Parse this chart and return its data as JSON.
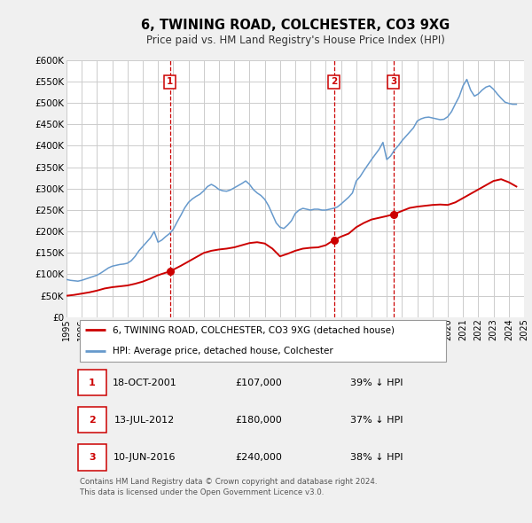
{
  "title": "6, TWINING ROAD, COLCHESTER, CO3 9XG",
  "subtitle": "Price paid vs. HM Land Registry's House Price Index (HPI)",
  "ylim": [
    0,
    600000
  ],
  "yticks": [
    0,
    50000,
    100000,
    150000,
    200000,
    250000,
    300000,
    350000,
    400000,
    450000,
    500000,
    550000,
    600000
  ],
  "ytick_labels": [
    "£0",
    "£50K",
    "£100K",
    "£150K",
    "£200K",
    "£250K",
    "£300K",
    "£350K",
    "£400K",
    "£450K",
    "£500K",
    "£550K",
    "£600K"
  ],
  "hpi_color": "#6699cc",
  "price_color": "#cc0000",
  "grid_color": "#cccccc",
  "bg_color": "#f0f0f0",
  "plot_bg_color": "#ffffff",
  "transaction_dates": [
    2001.79,
    2012.53,
    2016.44
  ],
  "transaction_prices": [
    107000,
    180000,
    240000
  ],
  "transaction_labels": [
    "1",
    "2",
    "3"
  ],
  "vline_color": "#cc0000",
  "legend_label_price": "6, TWINING ROAD, COLCHESTER, CO3 9XG (detached house)",
  "legend_label_hpi": "HPI: Average price, detached house, Colchester",
  "table_rows": [
    {
      "num": "1",
      "date": "18-OCT-2001",
      "price": "£107,000",
      "pct": "39% ↓ HPI"
    },
    {
      "num": "2",
      "date": "13-JUL-2012",
      "price": "£180,000",
      "pct": "37% ↓ HPI"
    },
    {
      "num": "3",
      "date": "10-JUN-2016",
      "price": "£240,000",
      "pct": "38% ↓ HPI"
    }
  ],
  "footer": "Contains HM Land Registry data © Crown copyright and database right 2024.\nThis data is licensed under the Open Government Licence v3.0.",
  "hpi_data": {
    "years": [
      1995.0,
      1995.25,
      1995.5,
      1995.75,
      1996.0,
      1996.25,
      1996.5,
      1996.75,
      1997.0,
      1997.25,
      1997.5,
      1997.75,
      1998.0,
      1998.25,
      1998.5,
      1998.75,
      1999.0,
      1999.25,
      1999.5,
      1999.75,
      2000.0,
      2000.25,
      2000.5,
      2000.75,
      2001.0,
      2001.25,
      2001.5,
      2001.75,
      2002.0,
      2002.25,
      2002.5,
      2002.75,
      2003.0,
      2003.25,
      2003.5,
      2003.75,
      2004.0,
      2004.25,
      2004.5,
      2004.75,
      2005.0,
      2005.25,
      2005.5,
      2005.75,
      2006.0,
      2006.25,
      2006.5,
      2006.75,
      2007.0,
      2007.25,
      2007.5,
      2007.75,
      2008.0,
      2008.25,
      2008.5,
      2008.75,
      2009.0,
      2009.25,
      2009.5,
      2009.75,
      2010.0,
      2010.25,
      2010.5,
      2010.75,
      2011.0,
      2011.25,
      2011.5,
      2011.75,
      2012.0,
      2012.25,
      2012.5,
      2012.75,
      2013.0,
      2013.25,
      2013.5,
      2013.75,
      2014.0,
      2014.25,
      2014.5,
      2014.75,
      2015.0,
      2015.25,
      2015.5,
      2015.75,
      2016.0,
      2016.25,
      2016.5,
      2016.75,
      2017.0,
      2017.25,
      2017.5,
      2017.75,
      2018.0,
      2018.25,
      2018.5,
      2018.75,
      2019.0,
      2019.25,
      2019.5,
      2019.75,
      2020.0,
      2020.25,
      2020.5,
      2020.75,
      2021.0,
      2021.25,
      2021.5,
      2021.75,
      2022.0,
      2022.25,
      2022.5,
      2022.75,
      2023.0,
      2023.25,
      2023.5,
      2023.75,
      2024.0,
      2024.25,
      2024.5
    ],
    "values": [
      88000,
      86000,
      85000,
      84000,
      86000,
      89000,
      92000,
      95000,
      98000,
      103000,
      109000,
      115000,
      119000,
      121000,
      123000,
      124000,
      126000,
      132000,
      142000,
      155000,
      165000,
      175000,
      185000,
      200000,
      175000,
      180000,
      188000,
      195000,
      205000,
      222000,
      238000,
      255000,
      268000,
      276000,
      282000,
      287000,
      295000,
      305000,
      310000,
      305000,
      298000,
      295000,
      294000,
      297000,
      302000,
      307000,
      312000,
      318000,
      310000,
      298000,
      290000,
      284000,
      275000,
      260000,
      240000,
      220000,
      210000,
      207000,
      215000,
      225000,
      242000,
      250000,
      254000,
      252000,
      250000,
      252000,
      252000,
      250000,
      250000,
      252000,
      254000,
      257000,
      264000,
      272000,
      280000,
      290000,
      318000,
      328000,
      342000,
      355000,
      368000,
      380000,
      392000,
      408000,
      368000,
      376000,
      390000,
      400000,
      412000,
      422000,
      432000,
      442000,
      458000,
      463000,
      466000,
      467000,
      465000,
      463000,
      461000,
      462000,
      468000,
      480000,
      498000,
      515000,
      540000,
      555000,
      530000,
      516000,
      521000,
      530000,
      537000,
      540000,
      532000,
      521000,
      511000,
      502000,
      499000,
      497000,
      497000
    ]
  },
  "price_detail": {
    "years": [
      1995.0,
      1995.5,
      1996.0,
      1996.5,
      1997.0,
      1997.5,
      1998.0,
      1998.5,
      1999.0,
      1999.5,
      2000.0,
      2000.5,
      2001.0,
      2001.79,
      2002.5,
      2003.0,
      2003.5,
      2004.0,
      2004.5,
      2005.0,
      2005.5,
      2006.0,
      2006.5,
      2007.0,
      2007.5,
      2008.0,
      2008.5,
      2009.0,
      2009.5,
      2010.0,
      2010.5,
      2011.0,
      2011.5,
      2012.0,
      2012.53,
      2013.0,
      2013.5,
      2014.0,
      2014.5,
      2015.0,
      2015.5,
      2016.0,
      2016.44,
      2017.0,
      2017.5,
      2018.0,
      2018.5,
      2019.0,
      2019.5,
      2020.0,
      2020.5,
      2021.0,
      2021.5,
      2022.0,
      2022.5,
      2023.0,
      2023.5,
      2024.0,
      2024.5
    ],
    "values": [
      50000,
      52000,
      55000,
      58000,
      62000,
      67000,
      70000,
      72000,
      74000,
      78000,
      83000,
      90000,
      98000,
      107000,
      120000,
      130000,
      140000,
      150000,
      155000,
      158000,
      160000,
      163000,
      168000,
      173000,
      175000,
      172000,
      160000,
      142000,
      148000,
      155000,
      160000,
      162000,
      163000,
      168000,
      180000,
      188000,
      195000,
      210000,
      220000,
      228000,
      232000,
      236000,
      240000,
      248000,
      255000,
      258000,
      260000,
      262000,
      263000,
      262000,
      268000,
      278000,
      288000,
      298000,
      308000,
      318000,
      322000,
      315000,
      305000
    ]
  }
}
